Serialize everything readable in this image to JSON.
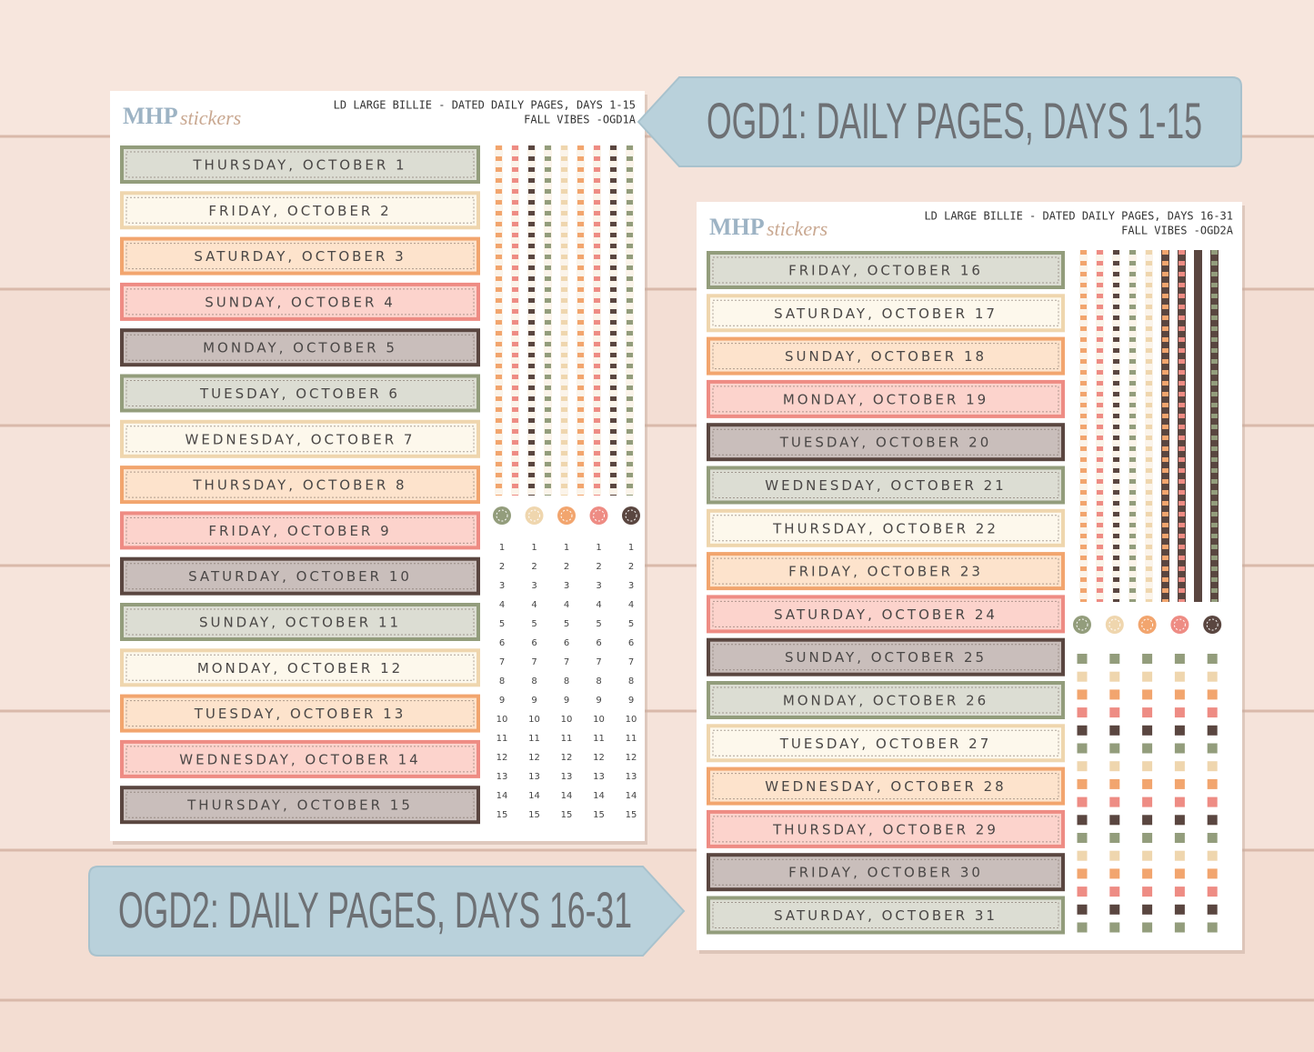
{
  "banners": [
    {
      "text": "OGD1: DAILY PAGES, DAYS 1-15"
    },
    {
      "text": "OGD2: DAILY PAGES, DAYS 16-31"
    }
  ],
  "palette": [
    {
      "fill": "#dcddd3",
      "edge": "#939d7c"
    },
    {
      "fill": "#fdf8ec",
      "edge": "#efd6ae"
    },
    {
      "fill": "#fde3cc",
      "edge": "#f2a56e"
    },
    {
      "fill": "#fcd3cc",
      "edge": "#ee8c84"
    },
    {
      "fill": "#c9bebb",
      "edge": "#5a4640"
    }
  ],
  "sheets": [
    {
      "brand": {
        "bold": "MHP",
        "script": "stickers"
      },
      "header": [
        "LD LARGE BILLIE  -  DATED DAILY PAGES, DAYS 1-15",
        "FALL VIBES -OGD1A"
      ],
      "labels": [
        "THURSDAY, OCTOBER 1",
        "FRIDAY, OCTOBER 2",
        "SATURDAY, OCTOBER 3",
        "SUNDAY, OCTOBER 4",
        "MONDAY, OCTOBER 5",
        "TUESDAY, OCTOBER 6",
        "WEDNESDAY, OCTOBER 7",
        "THURSDAY, OCTOBER 8",
        "FRIDAY, OCTOBER 9",
        "SATURDAY, OCTOBER 10",
        "SUNDAY, OCTOBER 11",
        "MONDAY, OCTOBER 12",
        "TUESDAY, OCTOBER 13",
        "WEDNESDAY, OCTOBER 14",
        "THURSDAY, OCTOBER 15"
      ],
      "numbers": [
        "1",
        "2",
        "3",
        "4",
        "5",
        "6",
        "7",
        "8",
        "9",
        "10",
        "11",
        "12",
        "13",
        "14",
        "15"
      ]
    },
    {
      "brand": {
        "bold": "MHP",
        "script": "stickers"
      },
      "header": [
        "LD LARGE BILLIE - DATED DAILY PAGES, DAYS 16-31",
        "FALL VIBES -OGD2A"
      ],
      "labels": [
        "FRIDAY, OCTOBER 16",
        "SATURDAY, OCTOBER 17",
        "SUNDAY, OCTOBER 18",
        "MONDAY, OCTOBER 19",
        "TUESDAY, OCTOBER 20",
        "WEDNESDAY, OCTOBER 21",
        "THURSDAY, OCTOBER 22",
        "FRIDAY, OCTOBER 23",
        "SATURDAY, OCTOBER 24",
        "SUNDAY, OCTOBER 25",
        "MONDAY, OCTOBER 26",
        "TUESDAY, OCTOBER 27",
        "WEDNESDAY, OCTOBER 28",
        "THURSDAY, OCTOBER 29",
        "FRIDAY, OCTOBER 30",
        "SATURDAY, OCTOBER 31"
      ]
    }
  ]
}
